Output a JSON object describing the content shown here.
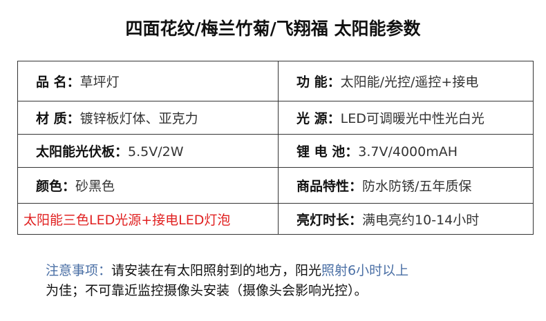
{
  "title": "四面花纹/梅兰竹菊/飞翔福  太阳能参数",
  "rows": [
    {
      "left": {
        "key": "品 名：",
        "value": "草坪灯"
      },
      "right": {
        "key": "功 能：",
        "value": "太阳能/光控/遥控+接电"
      }
    },
    {
      "left": {
        "key": "材 质：",
        "value": "镀锌板灯体、亚克力"
      },
      "right": {
        "key": "光 源：",
        "value": "LED可调暖光中性光白光"
      }
    },
    {
      "left": {
        "key": "太阳能光伏板：",
        "value": "5.5V/2W"
      },
      "right": {
        "key": "锂 电 池：",
        "value": "3.7V/4000mAH"
      }
    },
    {
      "left": {
        "key": "颜色：",
        "value": "砂黑色"
      },
      "right": {
        "key": "商品特性：",
        "value": "防水防锈/五年质保"
      }
    },
    {
      "left": {
        "highlight": "太阳能三色LED光源+接电LED灯泡"
      },
      "right": {
        "key": "亮灯时长：",
        "value": "满电亮约10-14小时"
      }
    }
  ],
  "notice": {
    "label": "注意事项：",
    "text1": "请安装在有太阳照射到的地方，阳光",
    "highlight": "照射6小时以上",
    "text2": "为佳；不可靠近监控摄像头安装（摄像头会影响光控）。"
  },
  "colors": {
    "highlight_red": "#e02020",
    "notice_blue": "#4a6fa5"
  }
}
